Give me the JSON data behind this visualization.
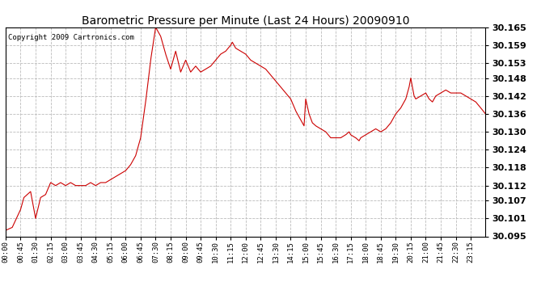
{
  "title": "Barometric Pressure per Minute (Last 24 Hours) 20090910",
  "copyright": "Copyright 2009 Cartronics.com",
  "line_color": "#cc0000",
  "background_color": "#ffffff",
  "grid_color": "#bbbbbb",
  "ylim": [
    30.095,
    30.165
  ],
  "yticks": [
    30.095,
    30.101,
    30.107,
    30.112,
    30.118,
    30.124,
    30.13,
    30.136,
    30.142,
    30.148,
    30.153,
    30.159,
    30.165
  ],
  "xtick_labels": [
    "00:00",
    "00:45",
    "01:30",
    "02:15",
    "03:00",
    "03:45",
    "04:30",
    "05:15",
    "06:00",
    "06:45",
    "07:30",
    "08:15",
    "09:00",
    "09:45",
    "10:30",
    "11:15",
    "12:00",
    "12:45",
    "13:30",
    "14:15",
    "15:00",
    "15:45",
    "16:30",
    "17:15",
    "18:00",
    "18:45",
    "19:30",
    "20:15",
    "21:00",
    "21:45",
    "22:30",
    "23:15"
  ],
  "ctrl_points": [
    [
      0,
      30.097
    ],
    [
      20,
      30.098
    ],
    [
      45,
      30.104
    ],
    [
      55,
      30.108
    ],
    [
      75,
      30.11
    ],
    [
      90,
      30.101
    ],
    [
      105,
      30.108
    ],
    [
      120,
      30.109
    ],
    [
      135,
      30.113
    ],
    [
      150,
      30.112
    ],
    [
      165,
      30.113
    ],
    [
      180,
      30.112
    ],
    [
      195,
      30.113
    ],
    [
      210,
      30.112
    ],
    [
      225,
      30.112
    ],
    [
      240,
      30.112
    ],
    [
      255,
      30.113
    ],
    [
      270,
      30.112
    ],
    [
      285,
      30.113
    ],
    [
      300,
      30.113
    ],
    [
      315,
      30.114
    ],
    [
      330,
      30.115
    ],
    [
      345,
      30.116
    ],
    [
      360,
      30.117
    ],
    [
      375,
      30.119
    ],
    [
      390,
      30.122
    ],
    [
      405,
      30.128
    ],
    [
      420,
      30.14
    ],
    [
      435,
      30.154
    ],
    [
      450,
      30.165
    ],
    [
      465,
      30.162
    ],
    [
      480,
      30.156
    ],
    [
      495,
      30.151
    ],
    [
      510,
      30.157
    ],
    [
      525,
      30.15
    ],
    [
      540,
      30.154
    ],
    [
      555,
      30.15
    ],
    [
      570,
      30.152
    ],
    [
      585,
      30.15
    ],
    [
      600,
      30.151
    ],
    [
      615,
      30.152
    ],
    [
      630,
      30.154
    ],
    [
      645,
      30.156
    ],
    [
      660,
      30.157
    ],
    [
      675,
      30.159
    ],
    [
      680,
      30.16
    ],
    [
      690,
      30.158
    ],
    [
      705,
      30.157
    ],
    [
      720,
      30.156
    ],
    [
      735,
      30.154
    ],
    [
      750,
      30.153
    ],
    [
      765,
      30.152
    ],
    [
      780,
      30.151
    ],
    [
      795,
      30.149
    ],
    [
      810,
      30.147
    ],
    [
      825,
      30.145
    ],
    [
      840,
      30.143
    ],
    [
      855,
      30.141
    ],
    [
      870,
      30.137
    ],
    [
      885,
      30.134
    ],
    [
      895,
      30.132
    ],
    [
      900,
      30.141
    ],
    [
      910,
      30.136
    ],
    [
      920,
      30.133
    ],
    [
      930,
      30.132
    ],
    [
      945,
      30.131
    ],
    [
      960,
      30.13
    ],
    [
      975,
      30.128
    ],
    [
      990,
      30.128
    ],
    [
      1005,
      30.128
    ],
    [
      1020,
      30.129
    ],
    [
      1030,
      30.13
    ],
    [
      1035,
      30.129
    ],
    [
      1050,
      30.128
    ],
    [
      1060,
      30.127
    ],
    [
      1065,
      30.128
    ],
    [
      1080,
      30.129
    ],
    [
      1095,
      30.13
    ],
    [
      1110,
      30.131
    ],
    [
      1125,
      30.13
    ],
    [
      1140,
      30.131
    ],
    [
      1155,
      30.133
    ],
    [
      1170,
      30.136
    ],
    [
      1185,
      30.138
    ],
    [
      1200,
      30.141
    ],
    [
      1210,
      30.145
    ],
    [
      1215,
      30.148
    ],
    [
      1225,
      30.142
    ],
    [
      1230,
      30.141
    ],
    [
      1245,
      30.142
    ],
    [
      1260,
      30.143
    ],
    [
      1270,
      30.141
    ],
    [
      1280,
      30.14
    ],
    [
      1290,
      30.142
    ],
    [
      1305,
      30.143
    ],
    [
      1320,
      30.144
    ],
    [
      1335,
      30.143
    ],
    [
      1350,
      30.143
    ],
    [
      1365,
      30.143
    ],
    [
      1380,
      30.142
    ],
    [
      1395,
      30.141
    ],
    [
      1410,
      30.14
    ],
    [
      1425,
      30.138
    ],
    [
      1439,
      30.136
    ]
  ]
}
